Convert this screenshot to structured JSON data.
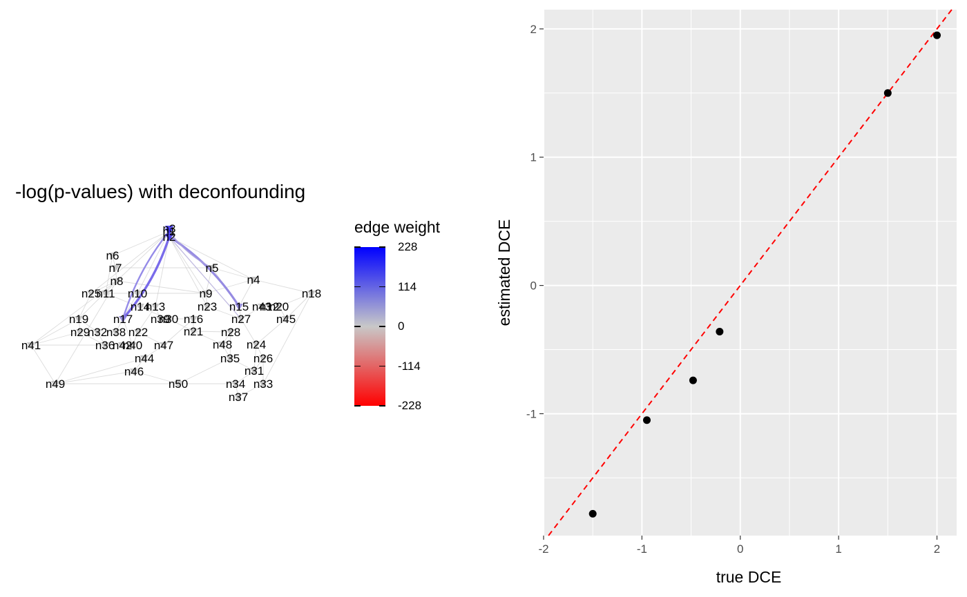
{
  "left_panel": {
    "title": "-log(p-values) with deconfounding",
    "legend": {
      "title": "edge weight",
      "labels": [
        "228",
        "114",
        "0",
        "-114",
        "-228"
      ],
      "colors": {
        "high": "#0000FF",
        "mid": "#C8C8C8",
        "low": "#FF0000"
      }
    },
    "network": {
      "node_color": "#BEBEBE",
      "edge_color": "#C8C8C8",
      "nodes": [
        "n1",
        "n2",
        "n3",
        "n4",
        "n5",
        "n6",
        "n7",
        "n8",
        "n9",
        "n10",
        "n11",
        "n12",
        "n13",
        "n14",
        "n15",
        "n16",
        "n17",
        "n18",
        "n19",
        "n20",
        "n21",
        "n22",
        "n23",
        "n24",
        "n25",
        "n26",
        "n27",
        "n28",
        "n29",
        "n30",
        "n31",
        "n32",
        "n33",
        "n34",
        "n35",
        "n36",
        "n37",
        "n38",
        "n39",
        "n40",
        "n41",
        "n42",
        "n43",
        "n44",
        "n45",
        "n46",
        "n47",
        "n48",
        "n49",
        "n50"
      ]
    }
  },
  "chart_data": {
    "type": "scatter",
    "title": "",
    "xlabel": "true DCE",
    "ylabel": "estimated DCE",
    "xlim": [
      -2,
      2.2
    ],
    "ylim": [
      -1.95,
      2.15
    ],
    "xticks": [
      "-2",
      "-1",
      "0",
      "1",
      "2"
    ],
    "yticks": [
      "-1",
      "0",
      "1",
      "2"
    ],
    "background": "#EBEBEB",
    "grid": true,
    "points": [
      {
        "x": -1.5,
        "y": -1.78
      },
      {
        "x": -0.95,
        "y": -1.05
      },
      {
        "x": -0.48,
        "y": -0.74
      },
      {
        "x": -0.21,
        "y": -0.36
      },
      {
        "x": 1.5,
        "y": 1.5
      },
      {
        "x": 2.0,
        "y": 1.95
      }
    ],
    "reference_line": {
      "slope": 1,
      "intercept": 0,
      "color": "#FF0000",
      "style": "dashed"
    }
  }
}
